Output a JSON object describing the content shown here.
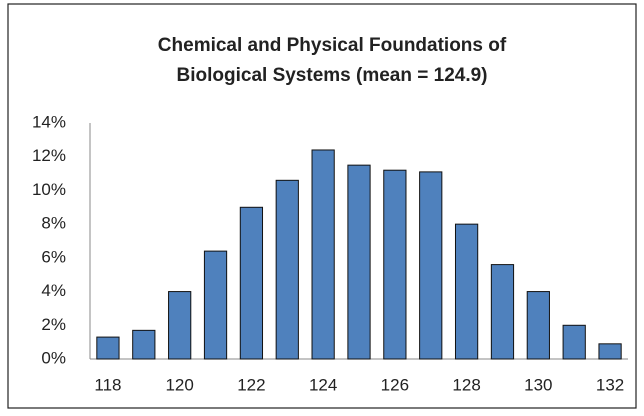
{
  "chart_data": {
    "type": "bar",
    "title": [
      "Chemical and Physical Foundations of",
      "Biological Systems (mean = 124.9)"
    ],
    "categories": [
      "118",
      null,
      "120",
      null,
      "122",
      null,
      "124",
      null,
      "126",
      null,
      "128",
      null,
      "130",
      null,
      "132"
    ],
    "values": [
      1.3,
      1.7,
      4.0,
      6.4,
      9.0,
      10.6,
      12.4,
      11.5,
      11.2,
      11.1,
      8.0,
      5.6,
      4.0,
      2.0,
      0.9
    ],
    "color": "#4f81bd",
    "ylim": [
      0,
      14
    ],
    "yticks": [
      {
        "value": 0,
        "label": "0%"
      },
      {
        "value": 2,
        "label": "2%"
      },
      {
        "value": 4,
        "label": "4%"
      },
      {
        "value": 6,
        "label": "6%"
      },
      {
        "value": 8,
        "label": "8%"
      },
      {
        "value": 10,
        "label": "10%"
      },
      {
        "value": 12,
        "label": "12%"
      },
      {
        "value": 14,
        "label": "14%"
      }
    ],
    "grid": false
  }
}
